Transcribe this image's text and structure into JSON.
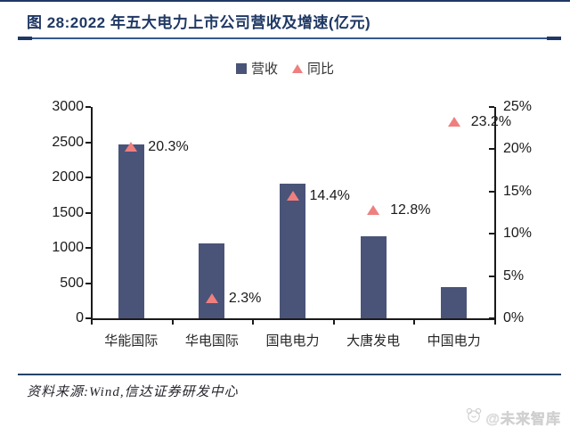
{
  "header": {
    "title": "图 28:2022 年五大电力上市公司营收及增速(亿元)"
  },
  "legend": [
    {
      "label": "营收",
      "marker": "square",
      "color": "#4A5478"
    },
    {
      "label": "同比",
      "marker": "triangle",
      "color": "#EF7F7F"
    }
  ],
  "chart_data": {
    "type": "bar",
    "title": "2022 年五大电力上市公司营收及增速(亿元)",
    "categories": [
      "华能国际",
      "华电国际",
      "国电电力",
      "大唐发电",
      "中国电力"
    ],
    "series": [
      {
        "name": "营收",
        "type": "bar",
        "axis": "left",
        "color": "#4A5478",
        "values": [
          2467,
          1068,
          1914,
          1167,
          437
        ]
      },
      {
        "name": "同比",
        "type": "scatter-triangle",
        "axis": "right",
        "color": "#EF7F7F",
        "values": [
          20.3,
          2.3,
          14.4,
          12.8,
          23.2
        ],
        "labels": [
          "20.3%",
          "2.3%",
          "14.4%",
          "12.8%",
          "23.2%"
        ]
      }
    ],
    "left_axis": {
      "min": 0,
      "max": 3000,
      "tick_labels": [
        "0",
        "500",
        "1000",
        "1500",
        "2000",
        "2500",
        "3000"
      ]
    },
    "right_axis": {
      "min": 0,
      "max": 25,
      "tick_labels": [
        "0%",
        "5%",
        "10%",
        "15%",
        "20%",
        "25%"
      ]
    },
    "grid": false,
    "legend_position": "top-center",
    "xlabel": "",
    "ylabel": ""
  },
  "footer": {
    "source": "资料来源:Wind,信达证券研发中心"
  },
  "watermark": {
    "text": "@未来智库",
    "icon": "bear-logo-icon"
  },
  "colors": {
    "accent_navy": "#1F3864",
    "bar": "#4A5478",
    "triangle": "#EF7F7F",
    "axis": "#1a1a1a",
    "watermark": "#d6d6d6"
  }
}
